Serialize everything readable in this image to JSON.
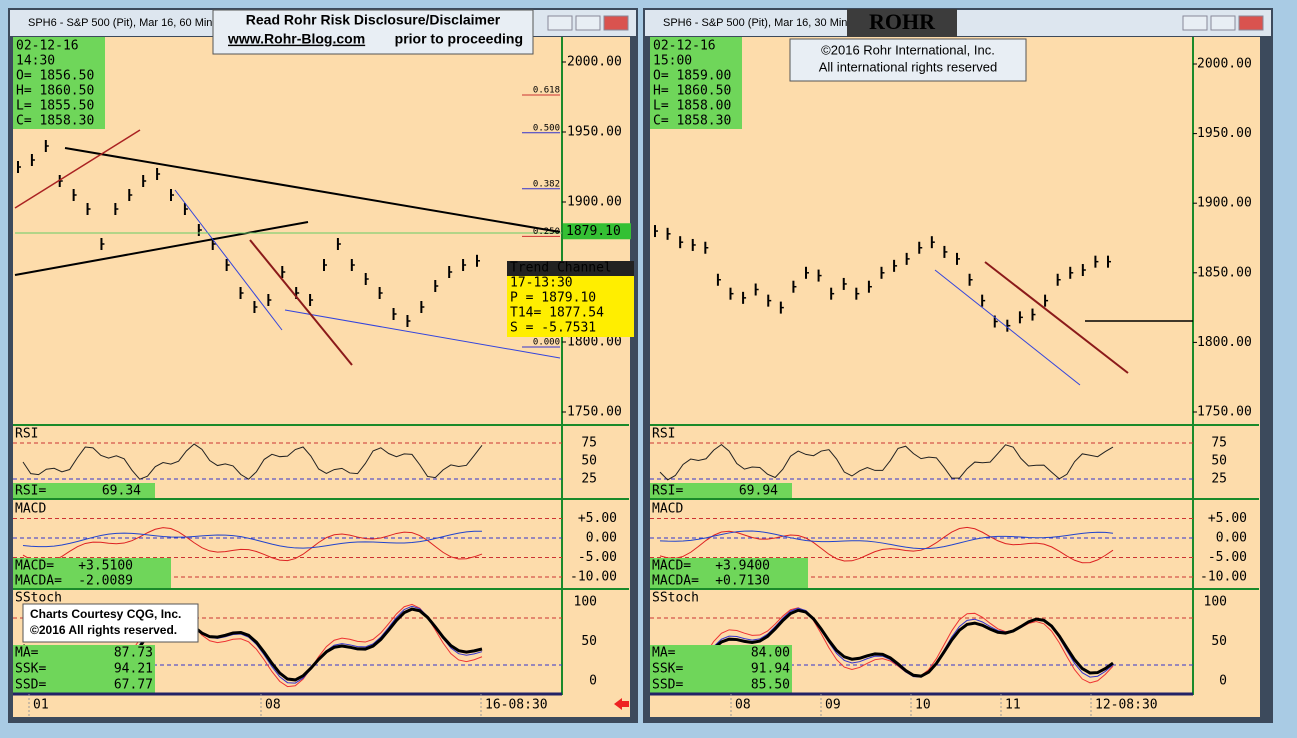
{
  "banner": {
    "line1": "Read Rohr Risk Disclosure/Disclaimer",
    "link": "www.Rohr-Blog.com",
    "line2": "prior to proceeding"
  },
  "copyright": {
    "line1": "©2016 Rohr International, Inc.",
    "line2": "All international rights reserved"
  },
  "logo": "ROHR",
  "courtesy": {
    "line1": "Charts Courtesy CQG, Inc.",
    "line2": "©2016 All rights reserved."
  },
  "windows": [
    {
      "title": "SPH6 - S&P 500 (Pit), Mar 16, 60 Min",
      "info": [
        "02-12-16",
        "14:30",
        "O=  1856.50",
        "H=  1860.50",
        "L=  1855.50",
        "C=  1858.30"
      ],
      "price_ticks": [
        {
          "value": 2000,
          "label": "2000.00"
        },
        {
          "value": 1950,
          "label": "1950.00"
        },
        {
          "value": 1900,
          "label": "1900.00"
        },
        {
          "value": 1850,
          "label": "1850.00"
        },
        {
          "value": 1800,
          "label": "1800.00"
        },
        {
          "value": 1750,
          "label": "1750.00"
        }
      ],
      "closes": [
        1925,
        1930,
        1940,
        1915,
        1905,
        1895,
        1870,
        1895,
        1905,
        1915,
        1920,
        1905,
        1895,
        1880,
        1870,
        1855,
        1835,
        1825,
        1830,
        1850,
        1835,
        1830,
        1855,
        1870,
        1855,
        1845,
        1835,
        1820,
        1815,
        1825,
        1840,
        1850,
        1855,
        1858
      ],
      "fib": [
        {
          "value": 1980,
          "label": "0.618"
        },
        {
          "value": 1953,
          "label": "0.500"
        },
        {
          "value": 1913,
          "label": "0.382"
        },
        {
          "value": 1879,
          "label": "0.250"
        },
        {
          "value": 1800,
          "label": "0.000"
        }
      ],
      "last_price": {
        "value": 1879.1,
        "label": "1879.10"
      },
      "trend_channel": [
        "Trend Channel",
        "17-13:30",
        "P    =    1879.10",
        "T14=    1877.54",
        "S    =    -5.7531"
      ],
      "rsi": {
        "name": "RSI",
        "label": "RSI=",
        "value": "69.34",
        "ticks": [
          75,
          50,
          25
        ]
      },
      "macd": {
        "name": "MACD",
        "rows": [
          [
            "MACD=",
            "+3.5100"
          ],
          [
            "MACDA=",
            "-2.0089"
          ]
        ],
        "ticks": [
          {
            "value": 5,
            "label": "+5.00"
          },
          {
            "value": 0,
            "label": "0.00"
          },
          {
            "value": -5,
            "label": "-5.00"
          },
          {
            "value": -10,
            "label": "-10.00"
          }
        ]
      },
      "stoch": {
        "name": "SStoch",
        "rows": [
          [
            "MA=",
            "87.73"
          ],
          [
            "SSK=",
            "94.21"
          ],
          [
            "SSD=",
            "67.77"
          ]
        ],
        "ticks": [
          100,
          50,
          0
        ]
      },
      "time_labels": [
        "01",
        "08",
        "16-08:30"
      ]
    },
    {
      "title": "SPH6 - S&P 500 (Pit), Mar 16, 30 Min",
      "info": [
        "02-12-16",
        "15:00",
        "O=  1859.00",
        "H=  1860.50",
        "L=  1858.00",
        "C=  1858.30"
      ],
      "price_ticks": [
        {
          "value": 2000,
          "label": "2000.00"
        },
        {
          "value": 1950,
          "label": "1950.00"
        },
        {
          "value": 1900,
          "label": "1900.00"
        },
        {
          "value": 1850,
          "label": "1850.00"
        },
        {
          "value": 1800,
          "label": "1800.00"
        },
        {
          "value": 1750,
          "label": "1750.00"
        }
      ],
      "closes": [
        1880,
        1878,
        1872,
        1870,
        1868,
        1845,
        1835,
        1832,
        1838,
        1830,
        1825,
        1840,
        1850,
        1848,
        1835,
        1842,
        1835,
        1840,
        1850,
        1855,
        1860,
        1868,
        1872,
        1865,
        1860,
        1845,
        1830,
        1815,
        1812,
        1818,
        1820,
        1830,
        1845,
        1850,
        1852,
        1858,
        1858
      ],
      "rsi": {
        "name": "RSI",
        "label": "RSI=",
        "value": "69.94",
        "ticks": [
          75,
          50,
          25
        ]
      },
      "macd": {
        "name": "MACD",
        "rows": [
          [
            "MACD=",
            "+3.9400"
          ],
          [
            "MACDA=",
            "+0.7130"
          ]
        ],
        "ticks": [
          {
            "value": 5,
            "label": "+5.00"
          },
          {
            "value": 0,
            "label": "0.00"
          },
          {
            "value": -5,
            "label": "-5.00"
          },
          {
            "value": -10,
            "label": "-10.00"
          }
        ]
      },
      "stoch": {
        "name": "SStoch",
        "rows": [
          [
            "MA=",
            "84.00"
          ],
          [
            "SSK=",
            "91.94"
          ],
          [
            "SSD=",
            "85.50"
          ]
        ],
        "ticks": [
          100,
          50,
          0
        ]
      },
      "time_labels": [
        "08",
        "09",
        "10",
        "11",
        "12-08:30"
      ]
    }
  ]
}
